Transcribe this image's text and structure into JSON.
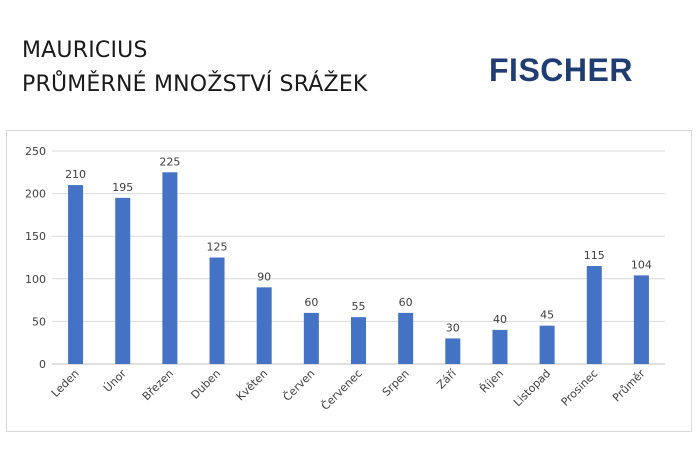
{
  "header": {
    "title_line1": "MAURICIUS",
    "title_line2": "PRŮMĚRNÉ MNOŽSTVÍ SRÁŽEK",
    "logo": "FISCHER"
  },
  "colors": {
    "bar": "#4472c4",
    "grid": "#d9d9d9",
    "logo": "#1f3d73"
  },
  "chart_data": {
    "type": "bar",
    "categories": [
      "Leden",
      "Únor",
      "Březen",
      "Duben",
      "Květen",
      "Červen",
      "Červenec",
      "Srpen",
      "Září",
      "Říjen",
      "Listopad",
      "Prosinec",
      "Průměr"
    ],
    "values": [
      210,
      195,
      225,
      125,
      90,
      60,
      55,
      60,
      30,
      40,
      45,
      115,
      104
    ],
    "data_labels": [
      "210",
      "195",
      "225",
      "125",
      "90",
      "60",
      "55",
      "60",
      "30",
      "40",
      "45",
      "115",
      "104"
    ],
    "y_ticks": [
      0,
      50,
      100,
      150,
      200,
      250
    ],
    "ylim": [
      0,
      250
    ],
    "grid": true,
    "legend": "none"
  }
}
